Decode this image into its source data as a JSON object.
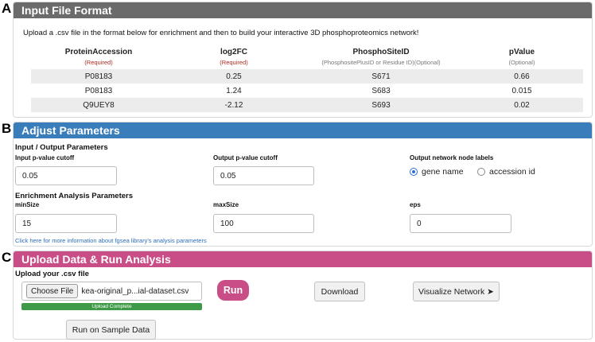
{
  "labels": {
    "a": "A",
    "b": "B",
    "c": "C"
  },
  "input_format": {
    "title": "Input File Format",
    "intro": "Upload a .csv file in the format below for enrichment and then to build your interactive 3D phosphoproteomics network!",
    "columns": [
      {
        "name": "ProteinAccession",
        "note": "(Required)"
      },
      {
        "name": "log2FC",
        "note": "(Required)"
      },
      {
        "name": "PhosphoSiteID",
        "note": "(PhosphositePlusID or Residue ID)(Optional)"
      },
      {
        "name": "pValue",
        "note": "(Optional)"
      }
    ],
    "rows": [
      [
        "P08183",
        "0.25",
        "S671",
        "0.66"
      ],
      [
        "P08183",
        "1.24",
        "S683",
        "0.015"
      ],
      [
        "Q9UEY8",
        "-2.12",
        "S693",
        "0.02"
      ]
    ]
  },
  "params": {
    "title": "Adjust Parameters",
    "io_title": "Input / Output Parameters",
    "input_pcut_label": "Input p-value cutoff",
    "input_pcut_value": "0.05",
    "output_pcut_label": "Output p-value cutoff",
    "output_pcut_value": "0.05",
    "node_labels_label": "Output network node labels",
    "node_label_options": [
      "gene name",
      "accession id"
    ],
    "node_label_selected": "gene name",
    "enrich_title": "Enrichment Analysis Parameters",
    "minsize_label": "minSize",
    "minsize_value": "15",
    "maxsize_label": "maxSize",
    "maxsize_value": "100",
    "eps_label": "eps",
    "eps_value": "0",
    "info_link": "Click here for more information about fgsea library's analysis parameters"
  },
  "upload": {
    "title": "Upload Data & Run Analysis",
    "file_label": "Upload your .csv file",
    "choose_file": "Choose File",
    "file_name": "kea-original_p...ial-dataset.csv",
    "progress_text": "Upload Complete",
    "progress": 1.0,
    "run": "Run",
    "download": "Download",
    "visualize": "Visualize Network ➤",
    "sample": "Run on Sample Data"
  },
  "colors": {
    "panel_a_header": "#6b6b6b",
    "panel_b_header": "#3a7dbb",
    "panel_c_header": "#c94d86",
    "required": "#b22a1f",
    "progress": "#3f9a47"
  }
}
